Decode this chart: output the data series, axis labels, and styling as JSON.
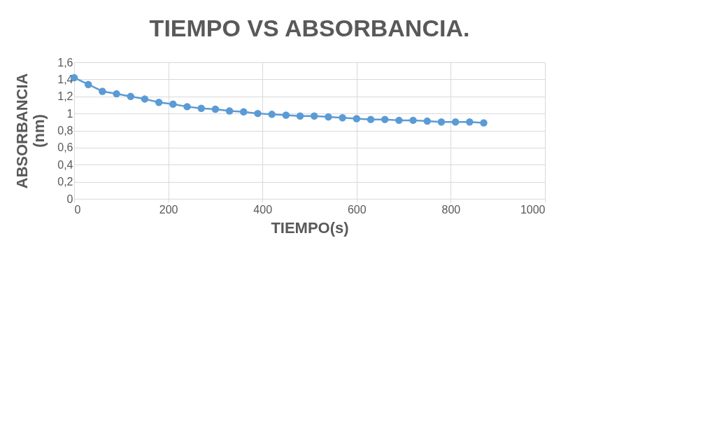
{
  "chart_data": {
    "type": "line",
    "title": "TIEMPO VS ABSORBANCIA.",
    "xlabel": "TIEMPO(s)",
    "ylabel": "ABSORBANCIA (nm)",
    "x": [
      0,
      30,
      60,
      90,
      120,
      150,
      180,
      210,
      240,
      270,
      300,
      330,
      360,
      390,
      420,
      450,
      480,
      510,
      540,
      570,
      600,
      630,
      660,
      690,
      720,
      750,
      780,
      810,
      840,
      870
    ],
    "series": [
      {
        "color": "#5b9bd5",
        "values": [
          1.42,
          1.34,
          1.26,
          1.23,
          1.2,
          1.17,
          1.13,
          1.11,
          1.08,
          1.06,
          1.05,
          1.03,
          1.02,
          1.0,
          0.99,
          0.98,
          0.97,
          0.97,
          0.96,
          0.95,
          0.94,
          0.93,
          0.93,
          0.92,
          0.92,
          0.91,
          0.9,
          0.9,
          0.9,
          0.89
        ]
      }
    ],
    "xlim": [
      0,
      1000
    ],
    "xticks": [
      0,
      200,
      400,
      600,
      800,
      1000
    ],
    "ylim": [
      0,
      1.6
    ],
    "yticks": [
      0,
      {
        "value": 0.2,
        "label": "0,2"
      },
      {
        "value": 0.4,
        "label": "0,4"
      },
      {
        "value": 0.6,
        "label": "0,6"
      },
      {
        "value": 0.8,
        "label": "0,8"
      },
      1,
      {
        "value": 1.2,
        "label": "1,2"
      },
      {
        "value": 1.4,
        "label": "1,4"
      },
      {
        "value": 1.6,
        "label": "1,6"
      }
    ],
    "grid": true,
    "marker": "circle",
    "line_style": "solid"
  }
}
